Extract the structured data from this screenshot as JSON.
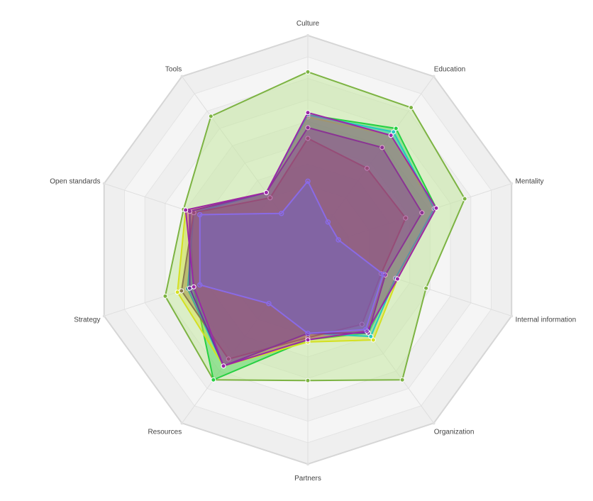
{
  "chart_data": {
    "type": "radar",
    "axes": [
      "Culture",
      "Education",
      "Mentality",
      "Internal information",
      "Organization",
      "Partners",
      "Resources",
      "Strategy",
      "Open standards",
      "Tools"
    ],
    "rlim": [
      0,
      10
    ],
    "grid": true,
    "legend": "none",
    "series": [
      {
        "color": "#7cb342",
        "fill": "#c5e8a0",
        "values": [
          8.3,
          8.2,
          7.7,
          5.8,
          7.5,
          6.1,
          7.5,
          7.0,
          6.1,
          7.7
        ]
      },
      {
        "color": "#26d042",
        "fill": "#26d042",
        "values": [
          6.3,
          7.0,
          6.3,
          4.3,
          4.8,
          4.2,
          7.5,
          5.6,
          5.8,
          3.3
        ]
      },
      {
        "color": "#d4e021",
        "fill": "#d4e021",
        "values": [
          6.2,
          6.6,
          6.2,
          4.4,
          5.2,
          4.3,
          6.7,
          6.4,
          6.0,
          3.3
        ]
      },
      {
        "color": "#22c9c0",
        "fill": "#22c9c0",
        "values": [
          6.3,
          6.8,
          6.2,
          4.3,
          5.0,
          3.9,
          6.7,
          5.9,
          5.6,
          3.3
        ]
      },
      {
        "color": "#8a7a50",
        "fill": "#8a7a50",
        "values": [
          5.2,
          4.7,
          4.8,
          3.6,
          4.3,
          4.1,
          6.3,
          6.2,
          5.6,
          3.0
        ]
      },
      {
        "color": "#6a3a9a",
        "fill": "#6a3a9a",
        "values": [
          5.7,
          5.9,
          5.6,
          3.8,
          4.8,
          3.9,
          6.7,
          5.8,
          5.8,
          3.3
        ]
      },
      {
        "color": "#9b27a8",
        "fill": "#c02a8a",
        "values": [
          6.4,
          6.6,
          6.3,
          4.4,
          4.7,
          4.2,
          6.7,
          5.6,
          6.0,
          3.3
        ]
      },
      {
        "color": "#8a6ae6",
        "fill": "#6a6ad8",
        "values": [
          3.2,
          1.6,
          1.5,
          3.7,
          4.6,
          3.9,
          3.1,
          5.3,
          5.3,
          2.1
        ]
      }
    ]
  }
}
